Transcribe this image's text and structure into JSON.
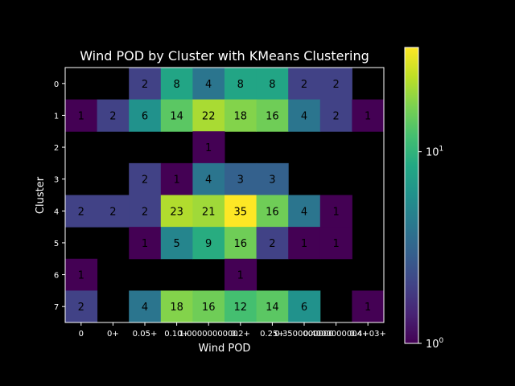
{
  "chart_data": {
    "type": "heatmap",
    "title": "Wind POD by Cluster with KMeans Clustering",
    "xlabel": "Wind POD",
    "ylabel": "Cluster",
    "x_tick_labels": [
      "0",
      "0+",
      "0.05+",
      "0.10+",
      "1.0000000000",
      "0.2+",
      "0.25+",
      "0.3500000000",
      "0.4000000004+",
      "0.4+03+"
    ],
    "y_tick_labels": [
      "0",
      "1",
      "2",
      "3",
      "4",
      "5",
      "6",
      "7"
    ],
    "values": [
      [
        null,
        null,
        2,
        8,
        4,
        8,
        8,
        2,
        2,
        null
      ],
      [
        1,
        2,
        6,
        14,
        22,
        18,
        16,
        4,
        2,
        1
      ],
      [
        null,
        null,
        null,
        null,
        1,
        null,
        null,
        null,
        null,
        null
      ],
      [
        null,
        null,
        2,
        1,
        4,
        3,
        3,
        null,
        null,
        null
      ],
      [
        2,
        2,
        2,
        23,
        21,
        35,
        16,
        4,
        1,
        null
      ],
      [
        null,
        null,
        1,
        5,
        9,
        16,
        2,
        1,
        1,
        null
      ],
      [
        1,
        null,
        null,
        null,
        null,
        1,
        null,
        null,
        null,
        null
      ],
      [
        2,
        null,
        4,
        18,
        16,
        12,
        14,
        6,
        null,
        1
      ]
    ],
    "color_scale": "log",
    "colormap": "viridis",
    "colorbar_range": [
      1,
      35
    ],
    "colorbar_ticks": [
      {
        "value": 1,
        "base": "10",
        "exp": "0"
      },
      {
        "value": 10,
        "base": "10",
        "exp": "1"
      }
    ],
    "background": "#000000"
  }
}
